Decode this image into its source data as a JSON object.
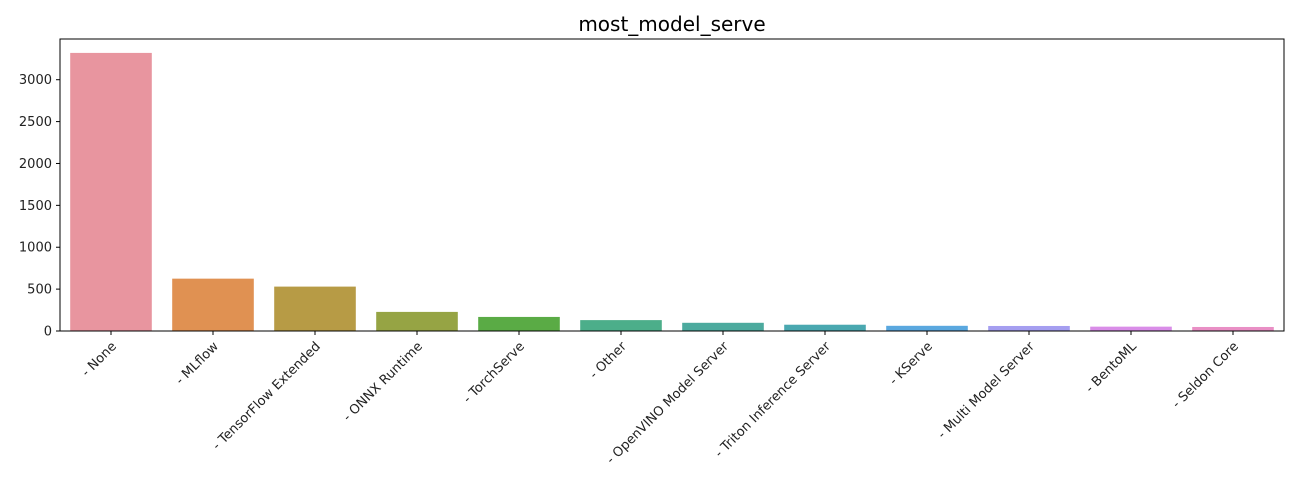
{
  "chart_data": {
    "type": "bar",
    "title": "most_model_serve",
    "xlabel": "",
    "ylabel": "",
    "categories": [
      " - None",
      " -  MLflow",
      " -  TensorFlow Extended",
      " -  ONNX Runtime",
      " -  TorchServe",
      " - Other",
      " -  OpenVINO Model Server",
      " -  Triton Inference Server",
      " -  KServe",
      " -  Multi Model Server",
      " -  BentoML",
      " -  Seldon Core"
    ],
    "values": [
      3320,
      625,
      530,
      228,
      168,
      130,
      98,
      75,
      62,
      60,
      52,
      48
    ],
    "colors": [
      "#e8959f",
      "#e09152",
      "#b79b45",
      "#96a444",
      "#5aab45",
      "#4cae8a",
      "#4caa9e",
      "#4aa8b0",
      "#5aa8df",
      "#a59ef0",
      "#d98de8",
      "#e98fc5"
    ],
    "ylim": [
      0,
      3486
    ],
    "yticks": [
      0,
      500,
      1000,
      1500,
      2000,
      2500,
      3000
    ],
    "grid": false,
    "legend": "none"
  }
}
